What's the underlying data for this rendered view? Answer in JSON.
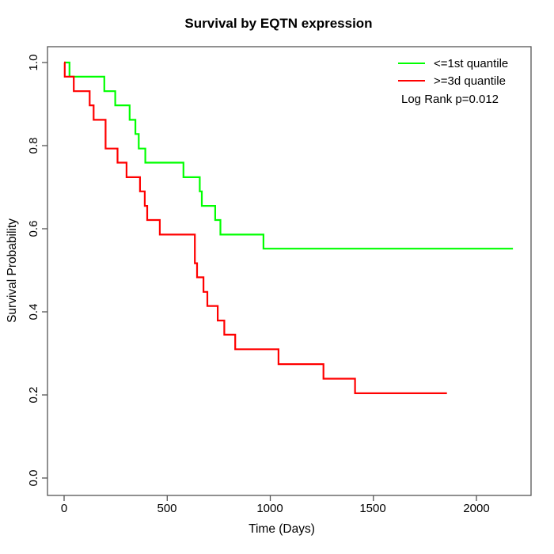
{
  "title": "Survival by EQTN expression",
  "axes": {
    "x": {
      "label": "Time (Days)",
      "tick_labels": [
        "0",
        "500",
        "1000",
        "1500",
        "2000"
      ]
    },
    "y": {
      "label": "Survival Probability",
      "tick_labels": [
        "0.0",
        "0.2",
        "0.4",
        "0.6",
        "0.8",
        "1.0"
      ]
    }
  },
  "legend": {
    "items": [
      {
        "label": "<=1st quantile",
        "color": "#00ff00"
      },
      {
        "label": ">=3d quantile",
        "color": "#ff0000"
      }
    ],
    "note": "Log Rank p=0.012"
  },
  "chart_data": {
    "type": "line",
    "subtype": "kaplan-meier-step",
    "title": "Survival by EQTN expression",
    "xlabel": "Time (Days)",
    "ylabel": "Survival Probability",
    "xlim": [
      0,
      2265
    ],
    "ylim": [
      0,
      1
    ],
    "grid": false,
    "legend_position": "top-right",
    "annotation": "Log Rank p=0.012",
    "axis_color": "#555555",
    "x_tick_values": [
      0,
      500,
      1000,
      1500,
      2000
    ],
    "y_tick_values": [
      0,
      0.2,
      0.4,
      0.6,
      0.8,
      1.0
    ],
    "series": [
      {
        "name": "<=1st quantile",
        "color": "#00ff00",
        "end_day": 2177,
        "points": [
          [
            0,
            1.0
          ],
          [
            26,
            0.966
          ],
          [
            195,
            0.931
          ],
          [
            248,
            0.897
          ],
          [
            318,
            0.862
          ],
          [
            346,
            0.828
          ],
          [
            362,
            0.793
          ],
          [
            394,
            0.759
          ],
          [
            579,
            0.724
          ],
          [
            658,
            0.69
          ],
          [
            668,
            0.655
          ],
          [
            733,
            0.621
          ],
          [
            758,
            0.586
          ],
          [
            967,
            0.552
          ]
        ]
      },
      {
        "name": ">=3d quantile",
        "color": "#ff0000",
        "end_day": 1857,
        "points": [
          [
            0,
            1.0
          ],
          [
            3,
            0.966
          ],
          [
            47,
            0.931
          ],
          [
            124,
            0.897
          ],
          [
            143,
            0.862
          ],
          [
            201,
            0.793
          ],
          [
            259,
            0.759
          ],
          [
            303,
            0.724
          ],
          [
            368,
            0.69
          ],
          [
            391,
            0.655
          ],
          [
            403,
            0.621
          ],
          [
            464,
            0.586
          ],
          [
            634,
            0.517
          ],
          [
            645,
            0.483
          ],
          [
            676,
            0.448
          ],
          [
            695,
            0.414
          ],
          [
            745,
            0.379
          ],
          [
            777,
            0.345
          ],
          [
            830,
            0.31
          ],
          [
            1040,
            0.274
          ],
          [
            1258,
            0.239
          ],
          [
            1411,
            0.204
          ]
        ]
      }
    ]
  }
}
